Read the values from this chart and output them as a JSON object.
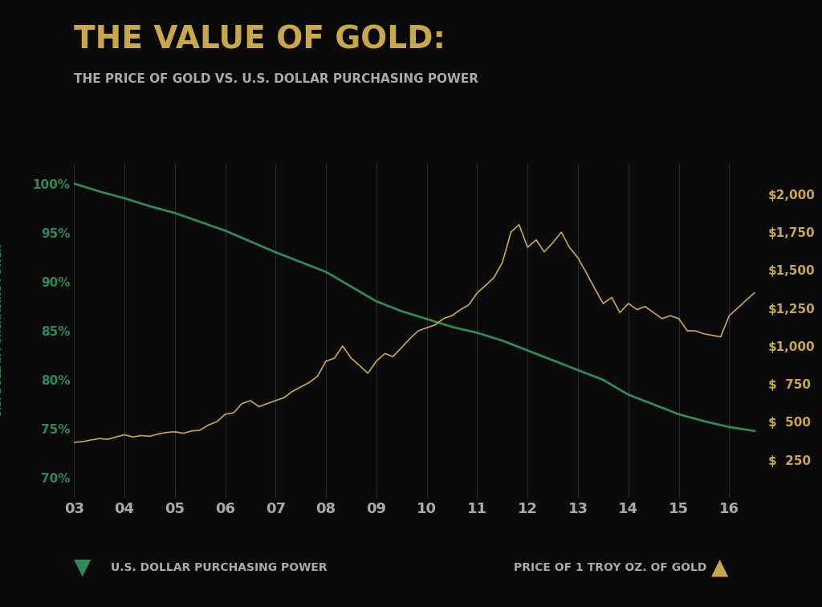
{
  "title": "THE VALUE OF GOLD:",
  "subtitle": "THE PRICE OF GOLD VS. U.S. DOLLAR PURCHASING POWER",
  "title_color": "#C9A84C",
  "subtitle_color": "#AAAAAA",
  "background_color": "#0A0A0A",
  "plot_bg_color": "#0A0A0A",
  "left_ylabel": "U.S. DOLLAR PURCHASING POWER",
  "right_ylabel": "PRICE OF 1 TROY OZ. OF GOLD",
  "left_axis_color": "#2E8B57",
  "right_axis_color": "#C9A84C",
  "grid_color": "#333333",
  "x_labels": [
    "03",
    "04",
    "05",
    "06",
    "07",
    "08",
    "09",
    "10",
    "11",
    "12",
    "13",
    "14",
    "15",
    "16"
  ],
  "left_yticks": [
    70,
    75,
    80,
    85,
    90,
    95,
    100
  ],
  "right_yticks": [
    250,
    500,
    750,
    1000,
    1250,
    1500,
    1750,
    2000
  ],
  "left_ylim": [
    68,
    102
  ],
  "right_ylim": [
    0,
    2200
  ],
  "purchasing_power": {
    "x": [
      2003,
      2003.5,
      2004,
      2004.5,
      2005,
      2005.5,
      2006,
      2006.5,
      2007,
      2007.5,
      2008,
      2008.5,
      2009,
      2009.5,
      2010,
      2010.5,
      2011,
      2011.5,
      2012,
      2012.5,
      2013,
      2013.5,
      2014,
      2014.5,
      2015,
      2015.5,
      2016,
      2016.5
    ],
    "y": [
      100,
      99.2,
      98.5,
      97.7,
      97.0,
      96.1,
      95.2,
      94.1,
      93.0,
      92.0,
      91.0,
      89.5,
      88.0,
      87.0,
      86.2,
      85.4,
      84.8,
      84.0,
      83.0,
      82.0,
      81.0,
      80.0,
      78.5,
      77.5,
      76.5,
      75.8,
      75.2,
      74.8
    ]
  },
  "gold_price": {
    "x": [
      2003.0,
      2003.17,
      2003.33,
      2003.5,
      2003.67,
      2003.83,
      2004.0,
      2004.17,
      2004.33,
      2004.5,
      2004.67,
      2004.83,
      2005.0,
      2005.17,
      2005.33,
      2005.5,
      2005.67,
      2005.83,
      2006.0,
      2006.17,
      2006.33,
      2006.5,
      2006.67,
      2006.83,
      2007.0,
      2007.17,
      2007.33,
      2007.5,
      2007.67,
      2007.83,
      2008.0,
      2008.17,
      2008.33,
      2008.5,
      2008.67,
      2008.83,
      2009.0,
      2009.17,
      2009.33,
      2009.5,
      2009.67,
      2009.83,
      2010.0,
      2010.17,
      2010.33,
      2010.5,
      2010.67,
      2010.83,
      2011.0,
      2011.17,
      2011.33,
      2011.5,
      2011.67,
      2011.83,
      2012.0,
      2012.17,
      2012.33,
      2012.5,
      2012.67,
      2012.83,
      2013.0,
      2013.17,
      2013.33,
      2013.5,
      2013.67,
      2013.83,
      2014.0,
      2014.17,
      2014.33,
      2014.5,
      2014.67,
      2014.83,
      2015.0,
      2015.17,
      2015.33,
      2015.5,
      2015.67,
      2015.83,
      2016.0,
      2016.17,
      2016.33,
      2016.5
    ],
    "y": [
      365,
      370,
      380,
      390,
      385,
      400,
      415,
      400,
      410,
      405,
      420,
      430,
      435,
      425,
      440,
      445,
      480,
      500,
      550,
      560,
      620,
      640,
      600,
      620,
      640,
      660,
      700,
      730,
      760,
      800,
      900,
      920,
      1000,
      920,
      870,
      820,
      900,
      950,
      930,
      990,
      1050,
      1100,
      1120,
      1140,
      1180,
      1200,
      1240,
      1270,
      1350,
      1400,
      1450,
      1550,
      1750,
      1800,
      1650,
      1700,
      1620,
      1680,
      1750,
      1650,
      1580,
      1480,
      1380,
      1280,
      1320,
      1220,
      1280,
      1240,
      1260,
      1220,
      1180,
      1200,
      1180,
      1100,
      1100,
      1080,
      1070,
      1060,
      1200,
      1250,
      1300,
      1350
    ]
  },
  "legend_left_text": "U.S. DOLLAR PURCHASING POWER",
  "legend_right_text": "PRICE OF 1 TROY OZ. OF GOLD",
  "legend_left_color": "#2E8B57",
  "legend_right_color": "#C9A84C"
}
